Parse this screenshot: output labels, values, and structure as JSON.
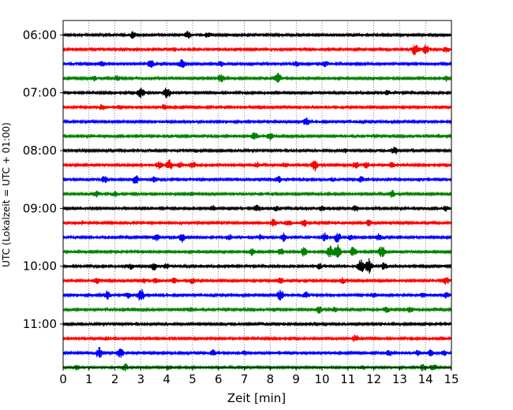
{
  "chart_data": {
    "type": "line",
    "title": "",
    "xlabel": "Zeit  [min]",
    "ylabel": "UTC (Lokalzeit = UTC + 01:00)",
    "xlim": [
      0,
      15
    ],
    "xticks": [
      0,
      1,
      2,
      3,
      4,
      5,
      6,
      7,
      8,
      9,
      10,
      11,
      12,
      13,
      14,
      15
    ],
    "xtick_labels": [
      "0",
      "1",
      "2",
      "3",
      "4",
      "5",
      "6",
      "7",
      "8",
      "9",
      "10",
      "11",
      "12",
      "13",
      "14",
      "15"
    ],
    "ylim": [
      "05:45",
      "11:45"
    ],
    "yticks": [
      "06:00",
      "07:00",
      "08:00",
      "09:00",
      "10:00",
      "11:00"
    ],
    "trace_interval_min": 15,
    "grid": "vertical dotted",
    "color_cycle": [
      "#000000",
      "#ff0000",
      "#0000ff",
      "#008000"
    ],
    "series": [
      {
        "start": "06:00",
        "color": "#000000",
        "bursts": [
          [
            2.7,
            4
          ],
          [
            4.8,
            4
          ],
          [
            5.6,
            3
          ]
        ]
      },
      {
        "start": "06:15",
        "color": "#ff0000",
        "bursts": [
          [
            4.3,
            2
          ],
          [
            13.6,
            7
          ],
          [
            14.0,
            5
          ],
          [
            14.8,
            3
          ]
        ]
      },
      {
        "start": "06:30",
        "color": "#0000ff",
        "bursts": [
          [
            1.5,
            3
          ],
          [
            3.4,
            5
          ],
          [
            4.6,
            6
          ],
          [
            6.1,
            3
          ],
          [
            9.0,
            3
          ],
          [
            10.1,
            4
          ]
        ]
      },
      {
        "start": "06:45",
        "color": "#008000",
        "bursts": [
          [
            1.2,
            3
          ],
          [
            2.1,
            3
          ],
          [
            6.1,
            4
          ],
          [
            8.3,
            6
          ],
          [
            14.8,
            3
          ]
        ]
      },
      {
        "start": "07:00",
        "color": "#000000",
        "bursts": [
          [
            3.0,
            6
          ],
          [
            4.0,
            7
          ],
          [
            12.5,
            3
          ]
        ]
      },
      {
        "start": "07:15",
        "color": "#ff0000",
        "bursts": [
          [
            1.5,
            3
          ],
          [
            2.2,
            2
          ],
          [
            3.9,
            3
          ]
        ]
      },
      {
        "start": "07:30",
        "color": "#0000ff",
        "bursts": [
          [
            9.4,
            5
          ]
        ]
      },
      {
        "start": "07:45",
        "color": "#008000",
        "bursts": [
          [
            7.4,
            4
          ],
          [
            8.0,
            4
          ],
          [
            14.5,
            2
          ]
        ]
      },
      {
        "start": "08:00",
        "color": "#000000",
        "bursts": [
          [
            10.9,
            2
          ],
          [
            12.8,
            5
          ]
        ]
      },
      {
        "start": "08:15",
        "color": "#ff0000",
        "bursts": [
          [
            3.7,
            4
          ],
          [
            4.1,
            6
          ],
          [
            4.5,
            4
          ],
          [
            5.0,
            4
          ],
          [
            7.5,
            3
          ],
          [
            8.6,
            3
          ],
          [
            9.7,
            7
          ],
          [
            11.3,
            4
          ],
          [
            11.7,
            4
          ],
          [
            12.7,
            3
          ]
        ]
      },
      {
        "start": "08:30",
        "color": "#0000ff",
        "bursts": [
          [
            1.6,
            4
          ],
          [
            2.8,
            5
          ],
          [
            3.5,
            3
          ],
          [
            8.3,
            4
          ],
          [
            10.4,
            2
          ],
          [
            11.5,
            3
          ],
          [
            13.8,
            2
          ]
        ]
      },
      {
        "start": "08:45",
        "color": "#008000",
        "bursts": [
          [
            1.3,
            3
          ],
          [
            2.0,
            3
          ],
          [
            5.0,
            2
          ],
          [
            12.7,
            4
          ]
        ]
      },
      {
        "start": "09:00",
        "color": "#000000",
        "bursts": [
          [
            5.8,
            3
          ],
          [
            7.5,
            4
          ],
          [
            8.2,
            3
          ],
          [
            10.0,
            3
          ],
          [
            11.3,
            3
          ],
          [
            14.8,
            3
          ]
        ]
      },
      {
        "start": "09:15",
        "color": "#ff0000",
        "bursts": [
          [
            0.7,
            2
          ],
          [
            2.4,
            2
          ],
          [
            8.1,
            4
          ],
          [
            8.7,
            3
          ],
          [
            9.3,
            4
          ],
          [
            11.8,
            3
          ]
        ]
      },
      {
        "start": "09:30",
        "color": "#0000ff",
        "bursts": [
          [
            3.6,
            4
          ],
          [
            4.6,
            5
          ],
          [
            6.4,
            3
          ],
          [
            7.6,
            3
          ],
          [
            8.5,
            5
          ],
          [
            10.1,
            5
          ],
          [
            10.6,
            6
          ],
          [
            11.1,
            3
          ],
          [
            12.2,
            4
          ]
        ]
      },
      {
        "start": "09:45",
        "color": "#008000",
        "bursts": [
          [
            7.3,
            4
          ],
          [
            8.4,
            4
          ],
          [
            9.3,
            5
          ],
          [
            10.3,
            7
          ],
          [
            10.6,
            9
          ],
          [
            11.2,
            5
          ],
          [
            12.3,
            7
          ]
        ]
      },
      {
        "start": "10:00",
        "color": "#000000",
        "bursts": [
          [
            2.6,
            3
          ],
          [
            3.5,
            5
          ],
          [
            4.0,
            3
          ],
          [
            9.9,
            3
          ],
          [
            11.5,
            8
          ],
          [
            11.8,
            9
          ],
          [
            12.4,
            4
          ]
        ]
      },
      {
        "start": "10:15",
        "color": "#ff0000",
        "bursts": [
          [
            1.3,
            3
          ],
          [
            3.1,
            3
          ],
          [
            3.6,
            3
          ],
          [
            4.3,
            3
          ],
          [
            5.0,
            3
          ],
          [
            8.4,
            3
          ],
          [
            10.8,
            3
          ],
          [
            14.8,
            4
          ]
        ]
      },
      {
        "start": "10:30",
        "color": "#0000ff",
        "bursts": [
          [
            1.7,
            5
          ],
          [
            2.5,
            3
          ],
          [
            3.0,
            8
          ],
          [
            8.4,
            6
          ],
          [
            9.4,
            4
          ],
          [
            12.0,
            3
          ],
          [
            13.9,
            3
          ],
          [
            14.8,
            3
          ]
        ]
      },
      {
        "start": "10:45",
        "color": "#008000",
        "bursts": [
          [
            4.9,
            2
          ],
          [
            8.2,
            2
          ],
          [
            9.9,
            4
          ],
          [
            10.5,
            3
          ],
          [
            12.5,
            3
          ],
          [
            13.4,
            3
          ]
        ]
      },
      {
        "start": "11:00",
        "color": "#000000",
        "bursts": [
          [
            7.7,
            1
          ],
          [
            8.5,
            1
          ]
        ]
      },
      {
        "start": "11:15",
        "color": "#ff0000",
        "bursts": [
          [
            1.7,
            2
          ],
          [
            11.3,
            4
          ]
        ]
      },
      {
        "start": "11:30",
        "color": "#0000ff",
        "bursts": [
          [
            1.4,
            7
          ],
          [
            2.2,
            6
          ],
          [
            5.8,
            3
          ],
          [
            7.0,
            2
          ],
          [
            12.6,
            3
          ],
          [
            13.7,
            3
          ],
          [
            14.2,
            4
          ],
          [
            14.7,
            3
          ]
        ]
      },
      {
        "start": "11:45",
        "color": "#008000",
        "bursts": [
          [
            0.5,
            3
          ],
          [
            2.4,
            4
          ],
          [
            4.1,
            2
          ],
          [
            11.6,
            2
          ],
          [
            13.9,
            4
          ],
          [
            14.3,
            3
          ]
        ]
      }
    ]
  }
}
